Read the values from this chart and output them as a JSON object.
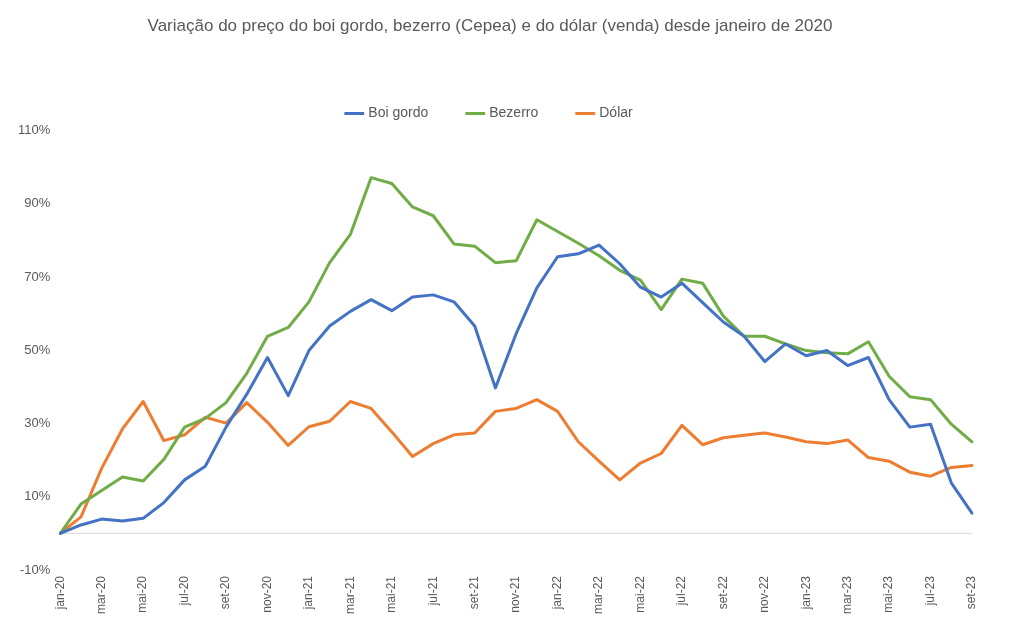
{
  "chart_data": {
    "type": "line",
    "title": "Variação do preço do boi gordo, bezerro (Cepea) e do dólar (venda) desde janeiro de 2020",
    "categories": [
      "jan-20",
      null,
      "mar-20",
      null,
      "mai-20",
      null,
      "jul-20",
      null,
      "set-20",
      null,
      "nov-20",
      null,
      "jan-21",
      null,
      "mar-21",
      null,
      "mai-21",
      null,
      "jul-21",
      null,
      "set-21",
      null,
      "nov-21",
      null,
      "jan-22",
      null,
      "mar-22",
      null,
      "mai-22",
      null,
      "jul-22",
      null,
      "set-22",
      null,
      "nov-22",
      null,
      "jan-23",
      null,
      "mar-23",
      null,
      "mai-23",
      null,
      "jul-23",
      null,
      "set-23"
    ],
    "series": [
      {
        "name": "Boi gordo",
        "color": "#4472c4",
        "values": [
          0,
          2.3,
          3.9,
          3.4,
          4.1,
          8.4,
          14.6,
          18.3,
          29,
          38,
          48,
          37.6,
          49.9,
          56.6,
          60.6,
          63.8,
          60.8,
          64.5,
          65.1,
          63.2,
          56.6,
          39.7,
          54.5,
          67,
          75.5,
          76.3,
          78.7,
          73.6,
          67.2,
          64.5,
          68.3,
          63,
          57.7,
          53.8,
          46.9,
          51.7,
          48.5,
          49.9,
          45.8,
          48,
          36.5,
          29,
          29.8,
          13.8,
          5.5
        ]
      },
      {
        "name": "Bezerro",
        "color": "#70ad47",
        "values": [
          0,
          8,
          11.7,
          15.4,
          14.3,
          20.2,
          29,
          31.4,
          35.7,
          43.7,
          53.8,
          56.2,
          63.2,
          73.9,
          81.6,
          97.1,
          95.5,
          89.1,
          86.7,
          79,
          78.4,
          73.9,
          74.4,
          85.6,
          82.4,
          79.2,
          75.8,
          71.8,
          69.1,
          61.1,
          69.4,
          68.3,
          59.3,
          53.8,
          53.8,
          51.7,
          49.9,
          49.3,
          49,
          52.3,
          42.9,
          37.3,
          36.5,
          29.8,
          25
        ]
      },
      {
        "name": "Dólar",
        "color": "#ed7d31",
        "values": [
          0,
          4.5,
          17.8,
          28.5,
          36,
          25.3,
          26.9,
          31.7,
          30.1,
          35.7,
          30.3,
          24,
          29.1,
          30.6,
          36,
          34.1,
          27.7,
          21,
          24.5,
          26.9,
          27.4,
          33.3,
          34.1,
          36.5,
          33.3,
          25,
          19.7,
          14.6,
          19.2,
          21.8,
          29.5,
          24.2,
          26.1,
          26.8,
          27.4,
          26.3,
          25,
          24.5,
          25.5,
          20.7,
          19.7,
          16.7,
          15.6,
          18,
          18.5
        ]
      }
    ],
    "ylim": [
      -10,
      110
    ],
    "yticks": [
      {
        "value": -10,
        "label": "-10%"
      },
      {
        "value": 10,
        "label": "10%"
      },
      {
        "value": 30,
        "label": "30%"
      },
      {
        "value": 50,
        "label": "50%"
      },
      {
        "value": 70,
        "label": "70%"
      },
      {
        "value": 90,
        "label": "90%"
      },
      {
        "value": 110,
        "label": "110%"
      }
    ],
    "ref_lines": [
      {
        "axis": "y",
        "value": 0,
        "color": "#d9d9d9"
      }
    ],
    "grid": false,
    "legend": "top",
    "marker": "none",
    "line_style": "solid"
  }
}
